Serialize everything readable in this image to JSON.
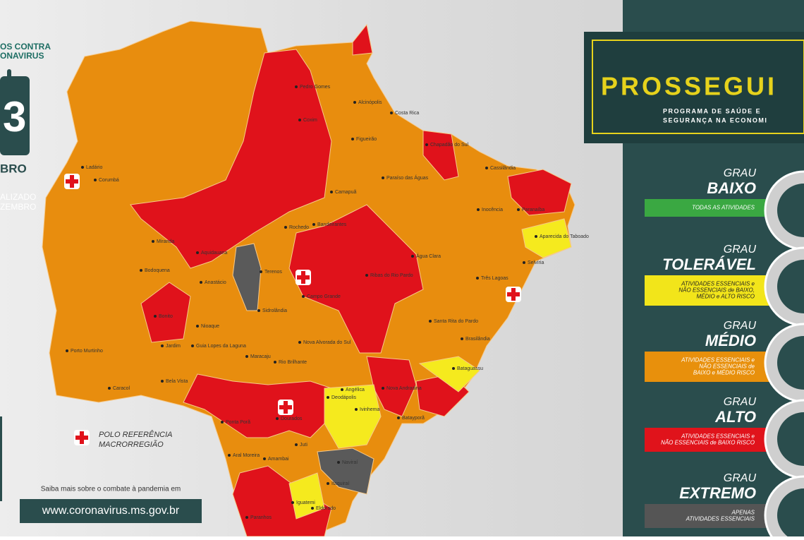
{
  "left": {
    "campaign": [
      "OS CONTRA",
      "ONAVIRUS"
    ],
    "calendar_day": "3",
    "calendar_month": "BRO",
    "updated": [
      "ALIZADO",
      "ZEMBRO"
    ]
  },
  "map": {
    "cities": [
      "Ladário",
      "Corumbá",
      "Pedro Gomes",
      "Alcinópolis",
      "Coxim",
      "Costa Rica",
      "Figueirão",
      "Chapadão do Sul",
      "Cassilândia",
      "Paraíso das Águas",
      "Camapuã",
      "Paranaíba",
      "Inocência",
      "Rochedo",
      "Bandeirantes",
      "Aparecida do Taboado",
      "Miranda",
      "Aquidauana",
      "Água Clara",
      "Selvíria",
      "Bodoquena",
      "Anastácio",
      "Terenos",
      "Campo Grande",
      "Ribas do Rio Pardo",
      "Três Lagoas",
      "Bonito",
      "Sidrolândia",
      "Nioaque",
      "Jardim",
      "Guia Lopes da Laguna",
      "Porto Murtinho",
      "Maracaju",
      "Rio Brilhante",
      "Nova Alvorada do Sul",
      "Santa Rita do Pardo",
      "Brasilândia",
      "Bela Vista",
      "Caracol",
      "Bataguassu",
      "Nova Andradina",
      "Angélica",
      "Deodápolis",
      "Ivinhema",
      "Batayporã",
      "Dourados",
      "Ponta Porã",
      "Juti",
      "Naviraí",
      "Aral Moreira",
      "Amambai",
      "Itaquiraí",
      "Iguatemi",
      "Paranhos",
      "Eldorado"
    ],
    "legend": [
      "POLO REFERÊNCIA",
      "MACRORREGIÃO"
    ]
  },
  "footer": {
    "text": "Saiba mais sobre o combate à pandemia em",
    "url": "www.coronavirus.ms.gov.br"
  },
  "header": {
    "title": "PROSSEGUI",
    "subtitle": [
      "PROGRAMA DE SAÚDE E",
      "SEGURANÇA NA ECONOMI"
    ]
  },
  "levels": [
    {
      "grau": "GRAU",
      "name": "BAIXO",
      "desc": [
        "TODAS AS ATIVIDADES"
      ]
    },
    {
      "grau": "GRAU",
      "name": "TOLERÁVEL",
      "desc": [
        "ATIVIDADES ESSENCIAIS e",
        "NÃO ESSENCIAIS de BAIXO,",
        "MÉDIO e ALTO RISCO"
      ]
    },
    {
      "grau": "GRAU",
      "name": "MÉDIO",
      "desc": [
        "ATIVIDADES ESSENCIAIS e",
        "NÃO ESSENCIAIS de",
        "BAIXO e MÉDIO RISCO"
      ]
    },
    {
      "grau": "GRAU",
      "name": "ALTO",
      "desc": [
        "ATIVIDADES ESSENCIAIS e",
        "NÃO ESSENCIAIS de BAIXO RISCO"
      ]
    },
    {
      "grau": "GRAU",
      "name": "EXTREMO",
      "desc": [
        "APENAS",
        "ATIVIDADES ESSENCIAIS"
      ]
    }
  ]
}
